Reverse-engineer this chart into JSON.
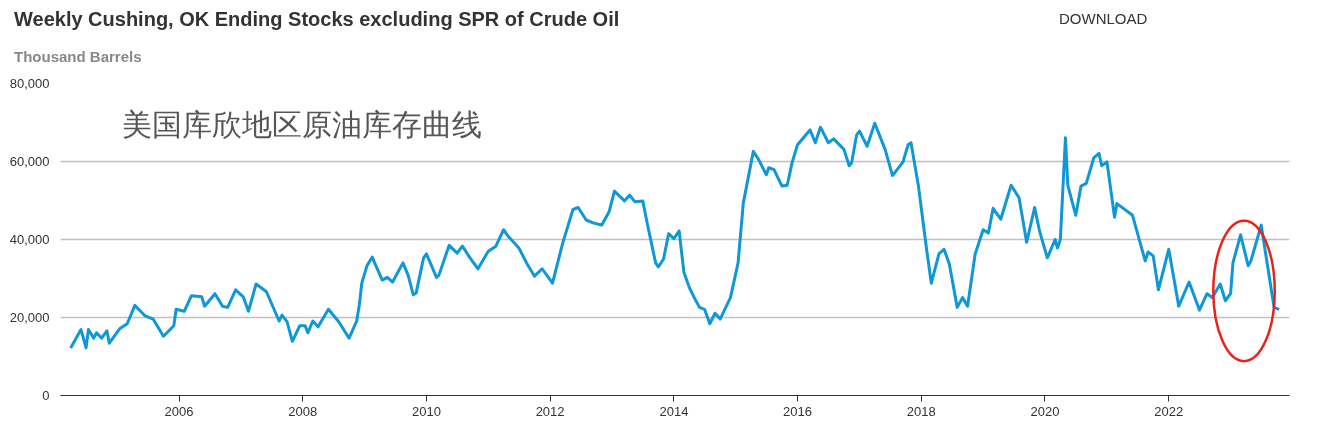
{
  "chart_data": {
    "type": "line",
    "title": "Weekly Cushing, OK Ending Stocks excluding SPR of Crude Oil",
    "ylabel": "Thousand Barrels",
    "annotations": [
      "美国库欣地区原油库存曲线",
      "DOWNLOAD"
    ],
    "x": [
      "2004-04-01",
      "2004-06-01",
      "2004-07-01",
      "2004-07-15",
      "2004-08-15",
      "2004-09-01",
      "2004-10-01",
      "2004-11-01",
      "2004-11-15",
      "2005-01-15",
      "2005-03-01",
      "2005-04-15",
      "2005-06-15",
      "2005-08-01",
      "2005-10-01",
      "2005-12-01",
      "2005-12-15",
      "2006-02-01",
      "2006-03-15",
      "2006-05-15",
      "2006-06-01",
      "2006-08-01",
      "2006-09-15",
      "2006-10-15",
      "2006-12-01",
      "2007-01-15",
      "2007-02-15",
      "2007-04-01",
      "2007-06-01",
      "2007-08-15",
      "2007-09-01",
      "2007-10-01",
      "2007-11-01",
      "2007-12-15",
      "2008-01-15",
      "2008-02-01",
      "2008-03-01",
      "2008-04-01",
      "2008-06-01",
      "2008-08-01",
      "2008-10-01",
      "2008-11-15",
      "2008-12-01",
      "2008-12-15",
      "2009-01-15",
      "2009-02-15",
      "2009-03-01",
      "2009-04-15",
      "2009-05-15",
      "2009-06-15",
      "2009-08-15",
      "2009-09-15",
      "2009-10-15",
      "2009-11-01",
      "2009-12-15",
      "2010-01-01",
      "2010-03-01",
      "2010-03-15",
      "2010-05-15",
      "2010-07-01",
      "2010-08-01",
      "2010-09-15",
      "2010-11-01",
      "2011-01-01",
      "2011-02-15",
      "2011-04-01",
      "2011-05-01",
      "2011-07-01",
      "2011-08-15",
      "2011-10-01",
      "2011-11-15",
      "2012-01-15",
      "2012-03-15",
      "2012-05-15",
      "2012-06-15",
      "2012-08-01",
      "2012-09-15",
      "2012-11-01",
      "2012-12-15",
      "2013-01-15",
      "2013-03-15",
      "2013-04-15",
      "2013-05-15",
      "2013-07-01",
      "2013-08-01",
      "2013-09-15",
      "2013-10-01",
      "2013-11-01",
      "2013-12-01",
      "2014-01-01",
      "2014-02-01",
      "2014-03-01",
      "2014-04-01",
      "2014-05-01",
      "2014-06-01",
      "2014-07-01",
      "2014-08-01",
      "2014-09-01",
      "2014-10-01",
      "2014-12-01",
      "2015-01-15",
      "2015-02-15",
      "2015-04-15",
      "2015-05-15",
      "2015-07-01",
      "2015-07-15",
      "2015-08-15",
      "2015-10-01",
      "2015-11-01",
      "2015-12-01",
      "2016-01-01",
      "2016-03-15",
      "2016-04-15",
      "2016-05-15",
      "2016-07-01",
      "2016-08-01",
      "2016-10-01",
      "2016-11-01",
      "2016-11-15",
      "2016-12-15",
      "2017-01-01",
      "2017-02-15",
      "2017-04-01",
      "2017-06-01",
      "2017-07-15",
      "2017-09-15",
      "2017-10-15",
      "2017-11-01",
      "2017-12-15",
      "2018-02-01",
      "2018-03-01",
      "2018-04-15",
      "2018-05-15",
      "2018-06-15",
      "2018-08-01",
      "2018-09-01",
      "2018-10-01",
      "2018-11-15",
      "2019-01-01",
      "2019-02-01",
      "2019-03-01",
      "2019-04-15",
      "2019-06-15",
      "2019-08-01",
      "2019-09-15",
      "2019-11-01",
      "2019-12-01",
      "2020-01-15",
      "2020-03-01",
      "2020-03-15",
      "2020-04-01",
      "2020-05-01",
      "2020-05-15",
      "2020-07-01",
      "2020-08-01",
      "2020-09-01",
      "2020-10-15",
      "2020-11-15",
      "2020-12-01",
      "2021-01-01",
      "2021-02-15",
      "2021-03-01",
      "2021-06-01",
      "2021-08-15",
      "2021-09-01",
      "2021-10-01",
      "2021-11-01",
      "2022-01-01",
      "2022-03-01",
      "2022-05-01",
      "2022-07-01",
      "2022-08-15",
      "2022-09-15",
      "2022-11-01",
      "2022-12-01",
      "2023-01-01",
      "2023-01-15",
      "2023-03-01",
      "2023-04-15",
      "2023-05-01",
      "2023-07-01",
      "2023-08-01",
      "2023-09-15",
      "2023-10-15"
    ],
    "series": [
      {
        "color": "#0f97d8",
        "values": [
          12200,
          16900,
          12200,
          16900,
          14700,
          16100,
          14700,
          16600,
          13400,
          17100,
          18400,
          23100,
          20400,
          19600,
          15200,
          17900,
          22100,
          21600,
          25600,
          25300,
          22900,
          26100,
          22900,
          22600,
          27100,
          25300,
          21600,
          28600,
          26600,
          19100,
          20600,
          18900,
          13900,
          17900,
          17900,
          16100,
          19100,
          17600,
          22100,
          18900,
          14700,
          19100,
          23400,
          28800,
          33300,
          35500,
          34000,
          29600,
          30300,
          29100,
          34000,
          30800,
          25800,
          26300,
          35300,
          36300,
          30300,
          30800,
          38500,
          36500,
          38300,
          35300,
          32500,
          37000,
          38300,
          42500,
          40700,
          37800,
          34000,
          30600,
          32500,
          28800,
          39000,
          47700,
          48200,
          45000,
          44200,
          43700,
          47200,
          52400,
          49900,
          51400,
          49700,
          49900,
          43200,
          34000,
          33000,
          35000,
          41500,
          40200,
          42200,
          31600,
          27800,
          25100,
          22600,
          22100,
          18400,
          21100,
          19600,
          25100,
          34000,
          49400,
          62600,
          60600,
          56600,
          58400,
          57900,
          53700,
          53900,
          59900,
          64300,
          68100,
          64800,
          68800,
          64800,
          65800,
          63100,
          58900,
          59600,
          66800,
          67800,
          63900,
          69800,
          63100,
          56400,
          59900,
          64300,
          64800,
          53700,
          37500,
          28800,
          36300,
          37500,
          33800,
          22600,
          25100,
          22900,
          36300,
          42500,
          41700,
          48000,
          45200,
          53900,
          50700,
          39300,
          48200,
          42000,
          35300,
          40000,
          37800,
          40000,
          66100,
          53900,
          46200,
          53700,
          54400,
          60900,
          62100,
          58900,
          59900,
          45700,
          49200,
          46200,
          34500,
          36800,
          35800,
          27100,
          37500,
          22900,
          29100,
          21900,
          26100,
          25100,
          28600,
          24300,
          26100,
          34000,
          41200,
          33300,
          34500,
          43700,
          35000,
          22600,
          22100
        ]
      }
    ],
    "xlim": [
      "2004-02-01",
      "2023-12-15"
    ],
    "xticks": [
      "2006",
      "2008",
      "2010",
      "2012",
      "2014",
      "2016",
      "2018",
      "2020",
      "2022"
    ],
    "ylim": [
      0,
      80000
    ],
    "yticks": [
      0,
      {
        "value": 20000,
        "label": "20,000"
      },
      {
        "value": 40000,
        "label": "40,000"
      },
      {
        "value": 60000,
        "label": "60,000"
      },
      {
        "value": 80000,
        "label": "80,000"
      }
    ],
    "grid": "y",
    "marker": "none",
    "line_style": "solid"
  }
}
